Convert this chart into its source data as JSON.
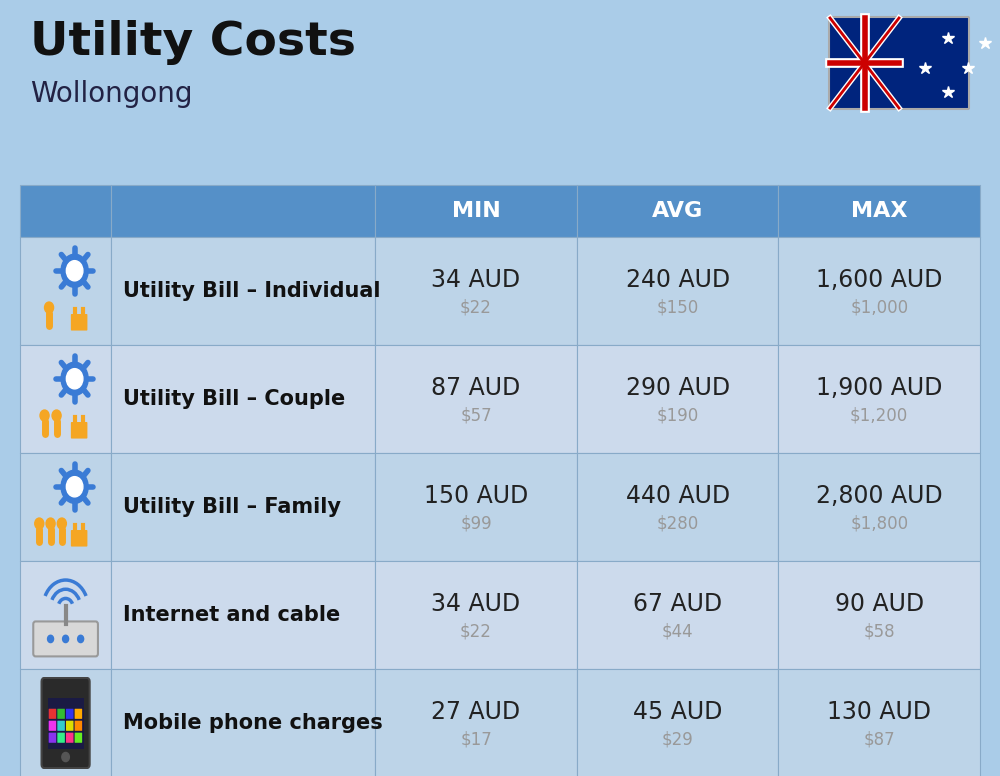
{
  "title": "Utility Costs",
  "subtitle": "Wollongong",
  "background_color": "#aacce8",
  "header_bg_color": "#5590c8",
  "row_bg_color_1": "#bdd4e8",
  "row_bg_color_2": "#ccdaec",
  "header_text_color": "#ffffff",
  "label_text_color": "#111111",
  "value_text_color": "#222222",
  "sub_value_text_color": "#999999",
  "grid_line_color": "#88aac8",
  "col_headers": [
    "MIN",
    "AVG",
    "MAX"
  ],
  "rows": [
    {
      "label": "Utility Bill – Individual",
      "icon": "utility",
      "min_aud": "34 AUD",
      "min_usd": "$22",
      "avg_aud": "240 AUD",
      "avg_usd": "$150",
      "max_aud": "1,600 AUD",
      "max_usd": "$1,000"
    },
    {
      "label": "Utility Bill – Couple",
      "icon": "utility",
      "min_aud": "87 AUD",
      "min_usd": "$57",
      "avg_aud": "290 AUD",
      "avg_usd": "$190",
      "max_aud": "1,900 AUD",
      "max_usd": "$1,200"
    },
    {
      "label": "Utility Bill – Family",
      "icon": "utility",
      "min_aud": "150 AUD",
      "min_usd": "$99",
      "avg_aud": "440 AUD",
      "avg_usd": "$280",
      "max_aud": "2,800 AUD",
      "max_usd": "$1,800"
    },
    {
      "label": "Internet and cable",
      "icon": "internet",
      "min_aud": "34 AUD",
      "min_usd": "$22",
      "avg_aud": "67 AUD",
      "avg_usd": "$44",
      "max_aud": "90 AUD",
      "max_usd": "$58"
    },
    {
      "label": "Mobile phone charges",
      "icon": "mobile",
      "min_aud": "27 AUD",
      "min_usd": "$17",
      "avg_aud": "45 AUD",
      "avg_usd": "$29",
      "max_aud": "130 AUD",
      "max_usd": "$87"
    }
  ],
  "title_fontsize": 34,
  "subtitle_fontsize": 20,
  "header_fontsize": 16,
  "label_fontsize": 15,
  "value_fontsize": 17,
  "subvalue_fontsize": 12,
  "fig_width": 10.0,
  "fig_height": 7.76,
  "dpi": 100
}
